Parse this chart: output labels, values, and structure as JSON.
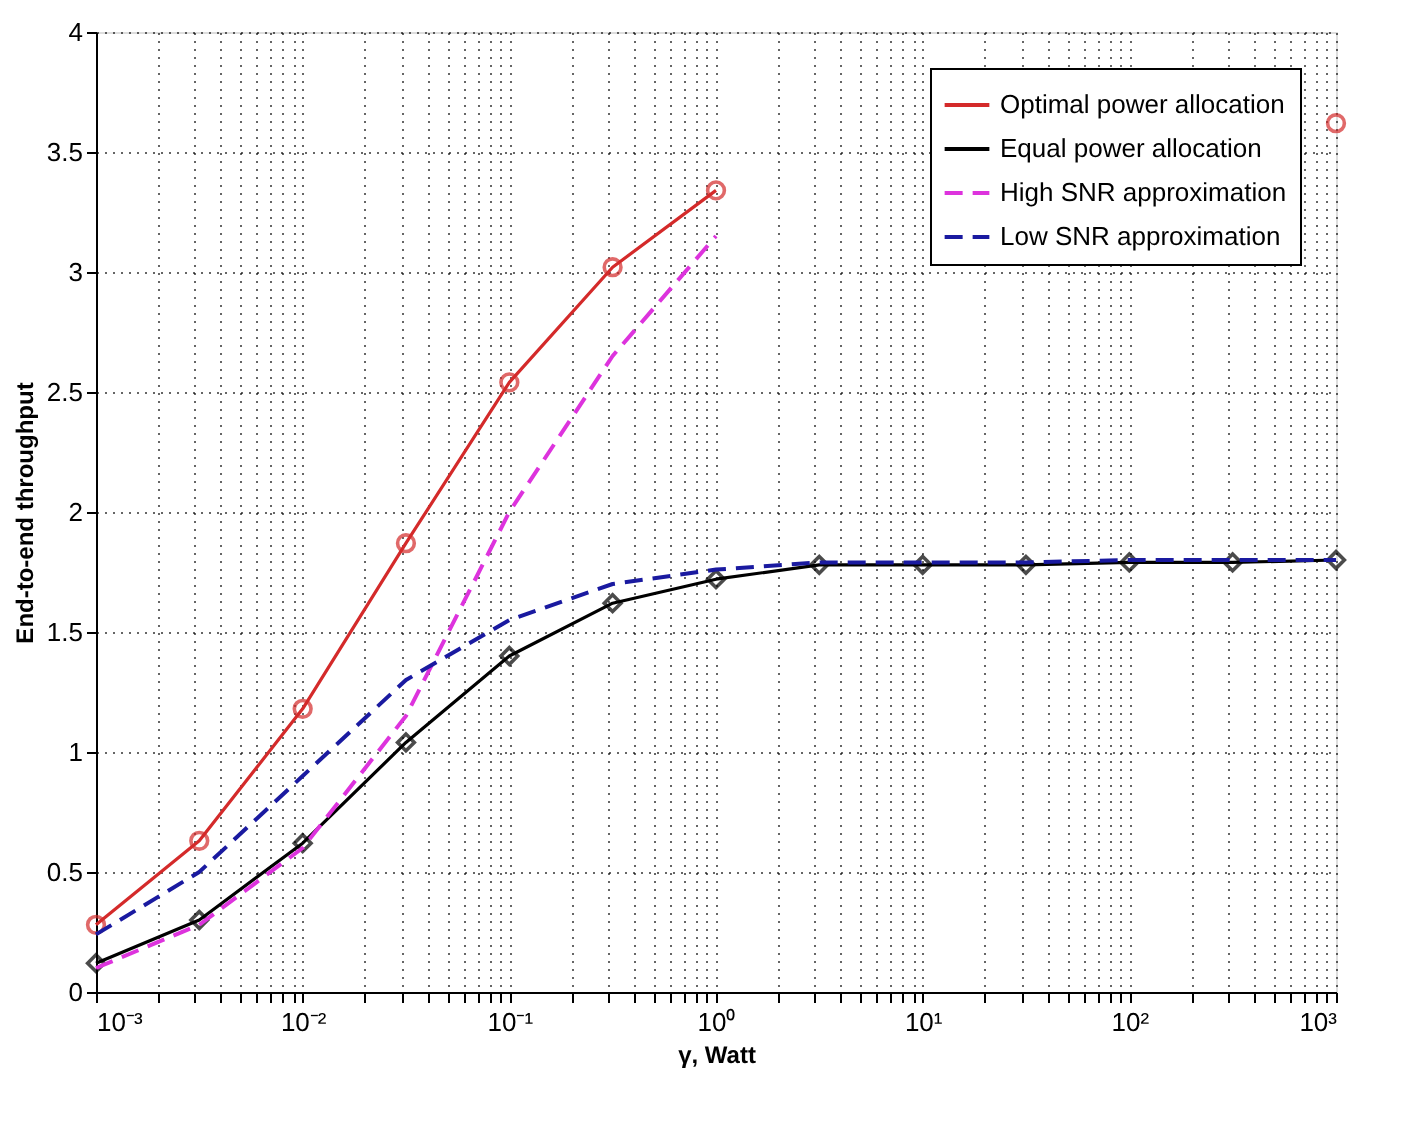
{
  "chart_data": {
    "type": "line",
    "xlabel": "γ, Watt",
    "ylabel": "End-to-end throughput",
    "x": [
      0.001,
      0.00316,
      0.01,
      0.0316,
      0.1,
      0.316,
      1,
      3.16,
      10,
      31.6,
      100,
      316,
      1000
    ],
    "log": "x",
    "grid": true,
    "legend": "top right",
    "xlim": [
      0.001,
      1000
    ],
    "ylim": [
      0,
      4
    ],
    "yticks": [
      0,
      0.5,
      1,
      1.5,
      2,
      2.5,
      3,
      3.5,
      4
    ],
    "xticks": [
      {
        "value": 0.001,
        "label": "10⁻³"
      },
      {
        "value": 0.002,
        "label": null
      },
      {
        "value": 0.003,
        "label": null
      },
      {
        "value": 0.004,
        "label": null
      },
      {
        "value": 0.005,
        "label": null
      },
      {
        "value": 0.006,
        "label": null
      },
      {
        "value": 0.007,
        "label": null
      },
      {
        "value": 0.008,
        "label": null
      },
      {
        "value": 0.009,
        "label": null
      },
      {
        "value": 0.01,
        "label": "10⁻²"
      },
      {
        "value": 0.02,
        "label": null
      },
      {
        "value": 0.03,
        "label": null
      },
      {
        "value": 0.04,
        "label": null
      },
      {
        "value": 0.05,
        "label": null
      },
      {
        "value": 0.06,
        "label": null
      },
      {
        "value": 0.07,
        "label": null
      },
      {
        "value": 0.08,
        "label": null
      },
      {
        "value": 0.09,
        "label": null
      },
      {
        "value": 0.1,
        "label": "10⁻¹"
      },
      {
        "value": 0.2,
        "label": null
      },
      {
        "value": 0.3,
        "label": null
      },
      {
        "value": 0.4,
        "label": null
      },
      {
        "value": 0.5,
        "label": null
      },
      {
        "value": 0.6,
        "label": null
      },
      {
        "value": 0.7,
        "label": null
      },
      {
        "value": 0.8,
        "label": null
      },
      {
        "value": 0.9,
        "label": null
      },
      {
        "value": 1,
        "label": "10⁰"
      },
      {
        "value": 2,
        "label": null
      },
      {
        "value": 3,
        "label": null
      },
      {
        "value": 4,
        "label": null
      },
      {
        "value": 5,
        "label": null
      },
      {
        "value": 6,
        "label": null
      },
      {
        "value": 7,
        "label": null
      },
      {
        "value": 8,
        "label": null
      },
      {
        "value": 9,
        "label": null
      },
      {
        "value": 10,
        "label": "10¹"
      },
      {
        "value": 20,
        "label": null
      },
      {
        "value": 30,
        "label": null
      },
      {
        "value": 40,
        "label": null
      },
      {
        "value": 50,
        "label": null
      },
      {
        "value": 60,
        "label": null
      },
      {
        "value": 70,
        "label": null
      },
      {
        "value": 80,
        "label": null
      },
      {
        "value": 90,
        "label": null
      },
      {
        "value": 100,
        "label": "10²"
      },
      {
        "value": 200,
        "label": null
      },
      {
        "value": 300,
        "label": null
      },
      {
        "value": 400,
        "label": null
      },
      {
        "value": 500,
        "label": null
      },
      {
        "value": 600,
        "label": null
      },
      {
        "value": 700,
        "label": null
      },
      {
        "value": 800,
        "label": null
      },
      {
        "value": 900,
        "label": null
      },
      {
        "value": 1000,
        "label": "10³"
      }
    ],
    "series": [
      {
        "name": "Optimal power allocation",
        "color": "#d42a2a",
        "marker": "circle",
        "line_style": "solid",
        "values": [
          0.28,
          0.63,
          1.18,
          1.87,
          2.54,
          3.02,
          3.34,
          null,
          null,
          null,
          null,
          null,
          3.62
        ]
      },
      {
        "name": "Equal power allocation",
        "color": "#000000",
        "marker": "diamond",
        "line_style": "solid",
        "values": [
          0.12,
          0.3,
          0.62,
          1.04,
          1.4,
          1.62,
          1.72,
          1.78,
          1.78,
          1.78,
          1.79,
          1.79,
          1.8
        ]
      },
      {
        "name": "High SNR approximation",
        "color": "#dd33dd",
        "marker": "none",
        "line_style": "dashed",
        "values": [
          0.1,
          0.28,
          0.6,
          1.15,
          2.0,
          2.65,
          3.15,
          null,
          null,
          null,
          null,
          null,
          null
        ]
      },
      {
        "name": "Low SNR approximation",
        "color": "#1a1aa0",
        "marker": "none",
        "line_style": "dashed",
        "values": [
          0.24,
          0.5,
          0.9,
          1.3,
          1.55,
          1.7,
          1.76,
          1.79,
          1.79,
          1.79,
          1.8,
          1.8,
          1.8
        ]
      }
    ]
  }
}
